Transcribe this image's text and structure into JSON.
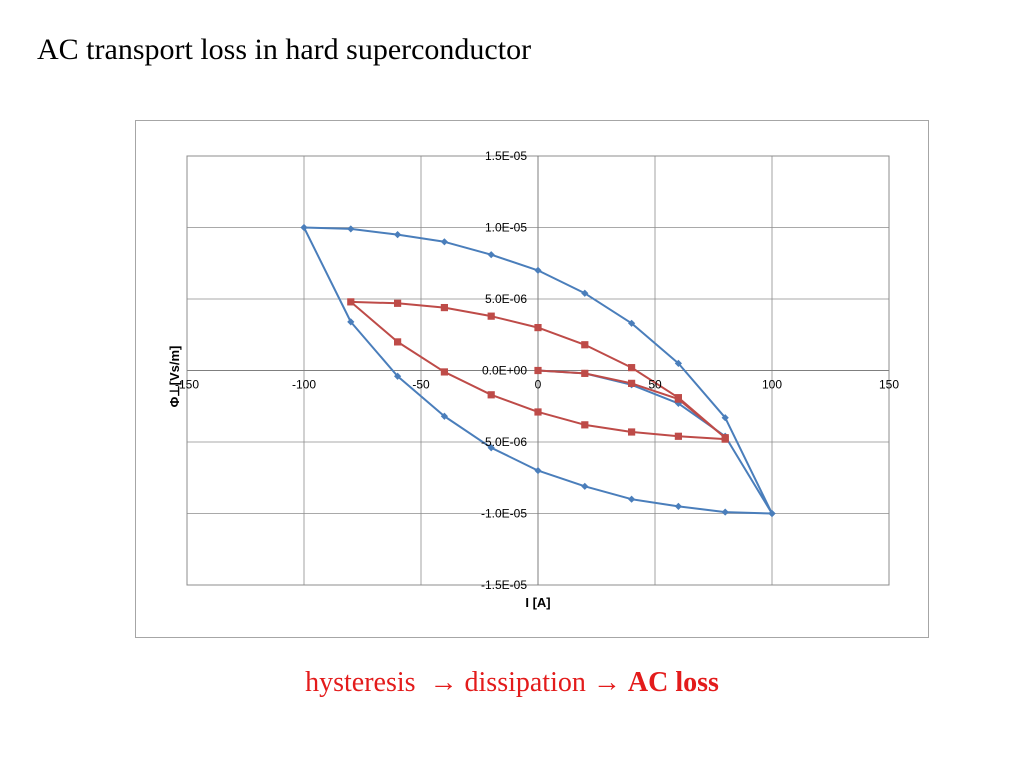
{
  "slide": {
    "title": "AC transport loss in hard superconductor",
    "caption": {
      "part1": "hysteresis",
      "arrow": "→",
      "part2": "dissipation",
      "part3": "AC loss"
    }
  },
  "colors": {
    "series_blue": "#4a7ebb",
    "series_red": "#be4b48",
    "caption": "#e31b1b",
    "grid": "#8c8c8c"
  },
  "chart_data": {
    "type": "scatter",
    "xlabel": "I [A]",
    "ylabel": "Φ⊥[Vs/m]",
    "xlim": [
      -150,
      150
    ],
    "ylim": [
      -1.5e-05,
      1.5e-05
    ],
    "x_ticks": [
      -150,
      -100,
      -50,
      0,
      50,
      100,
      150
    ],
    "x_tick_labels": [
      "-150",
      "-100",
      "-50",
      "0",
      "50",
      "100",
      "150"
    ],
    "y_ticks": [
      -1.5e-05,
      -1e-05,
      -5e-06,
      0,
      5e-06,
      1e-05,
      1.5e-05
    ],
    "y_tick_labels": [
      "-1.5E-05",
      "-1.0E-05",
      "-5.0E-06",
      "0.0E+00",
      "5.0E-06",
      "1.0E-05",
      "1.5E-05"
    ],
    "grid": true,
    "legend": "none",
    "series": [
      {
        "color": "#4a7ebb",
        "marker": "diamond",
        "points": [
          [
            0,
            0
          ],
          [
            20,
            -2e-07
          ],
          [
            40,
            -1e-06
          ],
          [
            60,
            -2.3e-06
          ],
          [
            80,
            -4.6e-06
          ],
          [
            100,
            -1e-05
          ],
          [
            80,
            -3.3e-06
          ],
          [
            60,
            5e-07
          ],
          [
            40,
            3.3e-06
          ],
          [
            20,
            5.4e-06
          ],
          [
            0,
            7e-06
          ],
          [
            -20,
            8.1e-06
          ],
          [
            -40,
            9e-06
          ],
          [
            -60,
            9.5e-06
          ],
          [
            -80,
            9.9e-06
          ],
          [
            -100,
            1e-05
          ],
          [
            -80,
            3.4e-06
          ],
          [
            -60,
            -4e-07
          ],
          [
            -40,
            -3.2e-06
          ],
          [
            -20,
            -5.4e-06
          ],
          [
            0,
            -7e-06
          ],
          [
            20,
            -8.1e-06
          ],
          [
            40,
            -9e-06
          ],
          [
            60,
            -9.5e-06
          ],
          [
            80,
            -9.9e-06
          ],
          [
            100,
            -1e-05
          ]
        ]
      },
      {
        "color": "#be4b48",
        "marker": "square",
        "points": [
          [
            0,
            0
          ],
          [
            20,
            -2e-07
          ],
          [
            40,
            -9e-07
          ],
          [
            60,
            -2e-06
          ],
          [
            80,
            -4.7e-06
          ],
          [
            60,
            -1.9e-06
          ],
          [
            40,
            2e-07
          ],
          [
            20,
            1.8e-06
          ],
          [
            0,
            3e-06
          ],
          [
            -20,
            3.8e-06
          ],
          [
            -40,
            4.4e-06
          ],
          [
            -60,
            4.7e-06
          ],
          [
            -80,
            4.8e-06
          ],
          [
            -60,
            2e-06
          ],
          [
            -40,
            -1e-07
          ],
          [
            -20,
            -1.7e-06
          ],
          [
            0,
            -2.9e-06
          ],
          [
            20,
            -3.8e-06
          ],
          [
            40,
            -4.3e-06
          ],
          [
            60,
            -4.6e-06
          ],
          [
            80,
            -4.8e-06
          ]
        ]
      }
    ]
  }
}
